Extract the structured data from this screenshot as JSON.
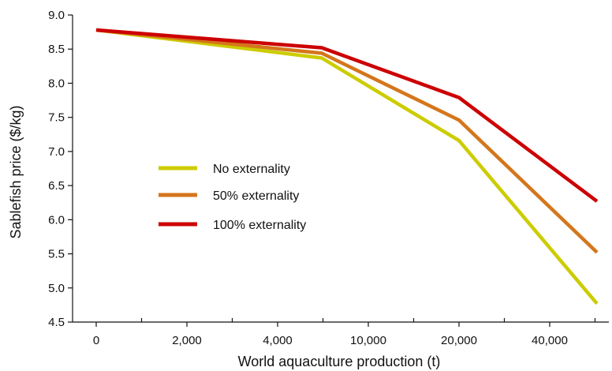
{
  "chart_data": {
    "type": "line",
    "xlabel": "World aquaculture production (t)",
    "ylabel": "Sablefish price ($/kg)",
    "categories": [
      "0",
      "2,000",
      "4,000",
      "10,000",
      "20,000",
      "40,000"
    ],
    "x": [
      0,
      5000,
      20000,
      50000
    ],
    "ylim": [
      4.5,
      9.0
    ],
    "yticks": [
      "4.5",
      "5.0",
      "5.5",
      "6.0",
      "6.5",
      "7.0",
      "7.5",
      "8.0",
      "8.5",
      "9.0"
    ],
    "legend_position": "middle-left",
    "grid": false,
    "series": [
      {
        "name": "No externality",
        "color": "#cccc00",
        "values": [
          8.78,
          8.37,
          7.16,
          4.77
        ]
      },
      {
        "name": "50% externality",
        "color": "#d4761c",
        "values": [
          8.78,
          8.44,
          7.46,
          5.52
        ]
      },
      {
        "name": "100% externality",
        "color": "#cc0000",
        "values": [
          8.78,
          8.52,
          7.79,
          6.27
        ]
      }
    ]
  }
}
